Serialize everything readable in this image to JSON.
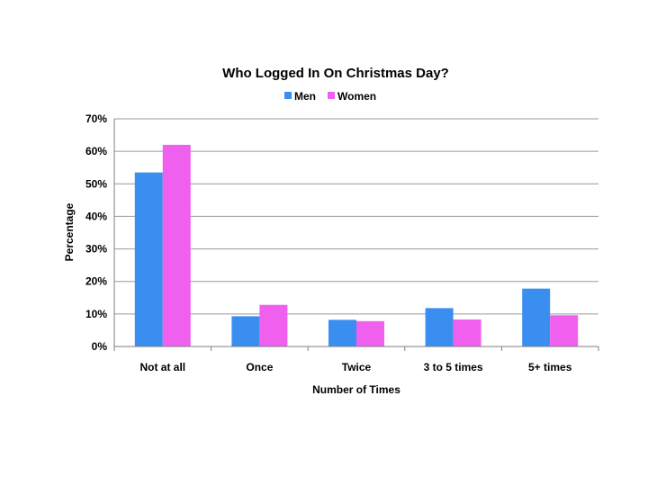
{
  "chart_data": {
    "type": "bar",
    "title": "Who Logged In On Christmas Day?",
    "xlabel": "Number of Times",
    "ylabel": "Percentage",
    "categories": [
      "Not at all",
      "Once",
      "Twice",
      "3 to 5 times",
      "5+ times"
    ],
    "series": [
      {
        "name": "Men",
        "color": "#3a8ef0",
        "values": [
          53.5,
          9.3,
          8.2,
          11.8,
          17.8
        ]
      },
      {
        "name": "Women",
        "color": "#f060ee",
        "values": [
          62.0,
          12.8,
          7.8,
          8.3,
          9.6
        ]
      }
    ],
    "ylim": [
      0,
      70
    ],
    "yticks": [
      0,
      10,
      20,
      30,
      40,
      50,
      60,
      70
    ],
    "ytick_labels": [
      "0%",
      "10%",
      "20%",
      "30%",
      "40%",
      "50%",
      "60%",
      "70%"
    ],
    "grid": true,
    "legend_position": "top-center"
  }
}
